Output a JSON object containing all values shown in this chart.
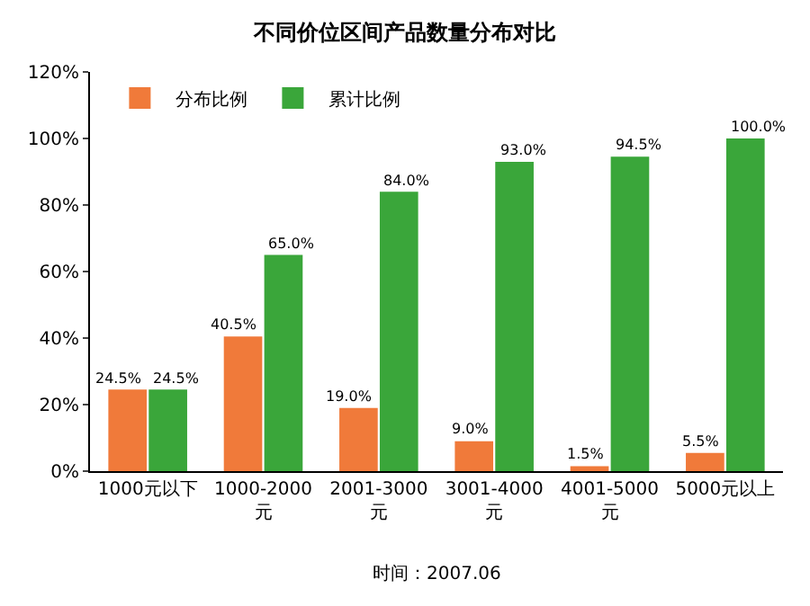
{
  "chart_data": {
    "type": "bar",
    "title": "不同价位区间产品数量分布对比",
    "categories": [
      "1000元以下",
      "1000-2000\n元",
      "2001-3000\n元",
      "3001-4000\n元",
      "4001-5000\n元",
      "5000元以上"
    ],
    "series": [
      {
        "name": "分布比例",
        "color": "#f07a3a",
        "values": [
          24.5,
          40.5,
          19.0,
          9.0,
          1.5,
          5.5
        ],
        "value_labels": [
          "24.5%",
          "40.5%",
          "19.0%",
          "9.0%",
          "1.5%",
          "5.5%"
        ]
      },
      {
        "name": "累计比例",
        "color": "#3aa63a",
        "values": [
          24.5,
          65.0,
          84.0,
          93.0,
          94.5,
          100.0
        ],
        "value_labels": [
          "24.5%",
          "65.0%",
          "84.0%",
          "93.0%",
          "94.5%",
          "100.0%"
        ]
      }
    ],
    "ylim": [
      0,
      120
    ],
    "yticks": [
      {
        "value": 0,
        "label": "0%"
      },
      {
        "value": 20,
        "label": "20%"
      },
      {
        "value": 40,
        "label": "40%"
      },
      {
        "value": 60,
        "label": "60%"
      },
      {
        "value": 80,
        "label": "80%"
      },
      {
        "value": 100,
        "label": "100%"
      },
      {
        "value": 120,
        "label": "120%"
      }
    ],
    "legend": "top left",
    "grid": false,
    "annotations": [
      "时间：2007.06"
    ]
  }
}
